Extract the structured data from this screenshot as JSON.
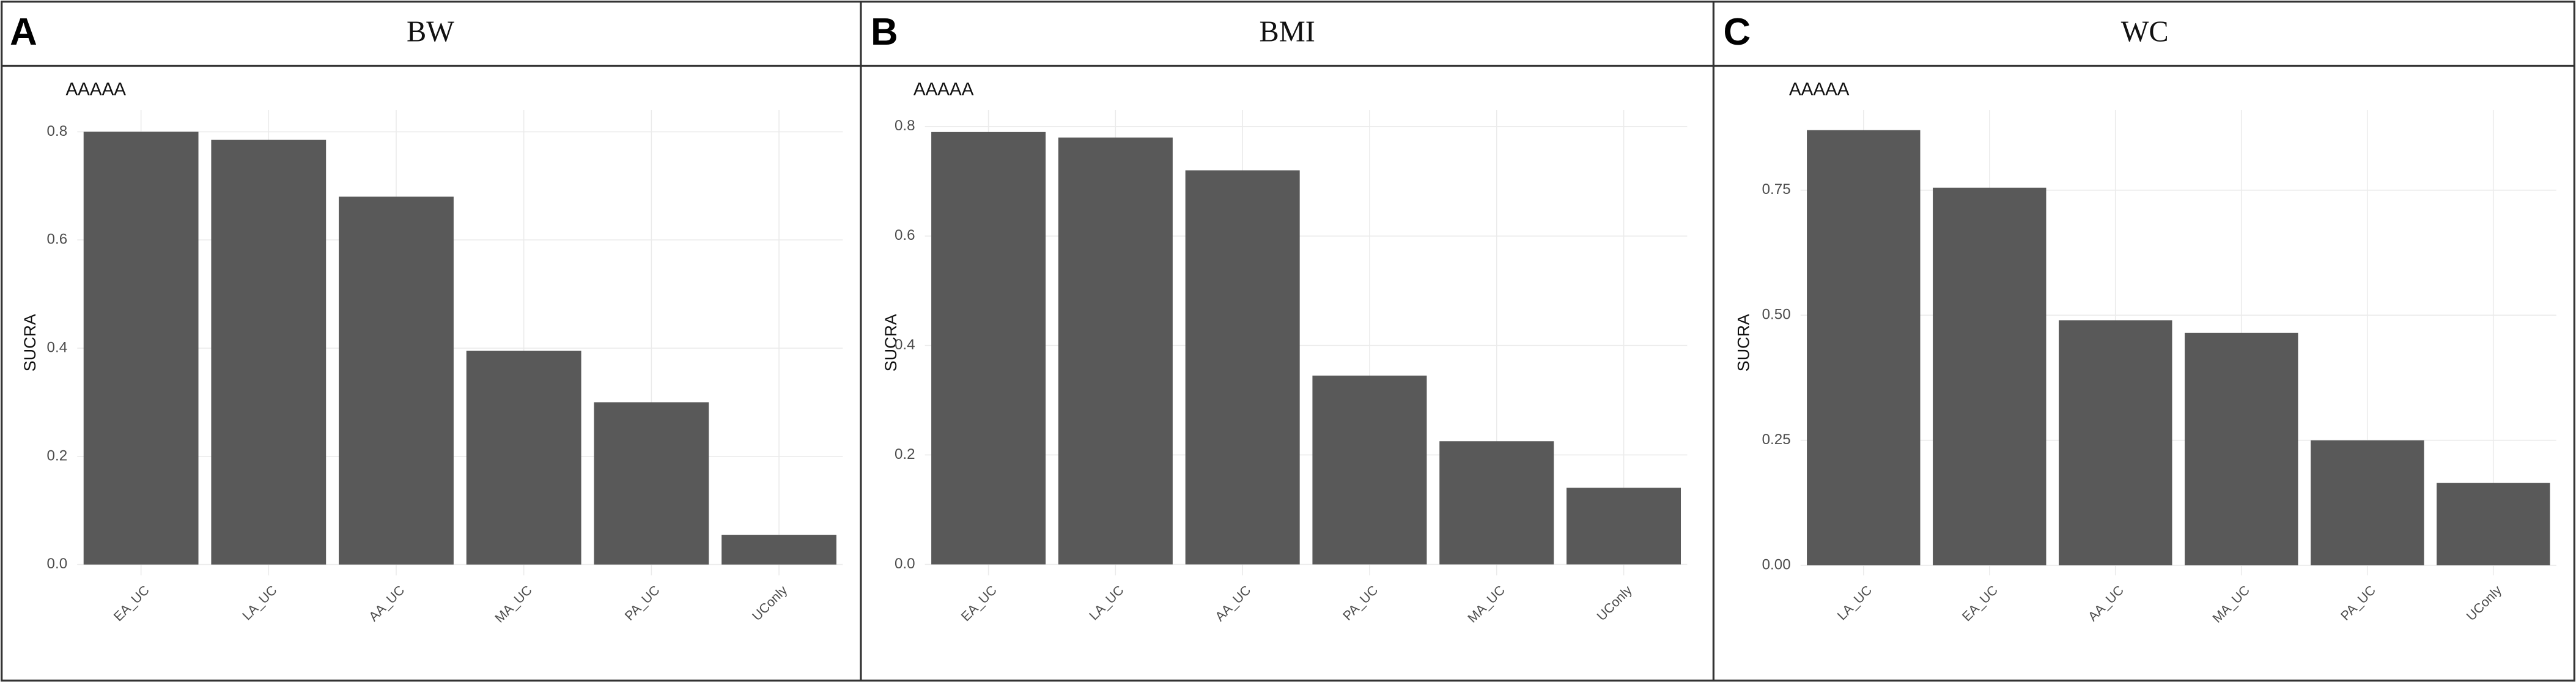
{
  "chart_data": [
    {
      "type": "bar",
      "panel_label": "A",
      "title": "BW",
      "tag": "AAAAA",
      "y_label": "SUCRA",
      "categories": [
        "EA_UC",
        "LA_UC",
        "AA_UC",
        "MA_UC",
        "PA_UC",
        "UConly"
      ],
      "values": [
        0.8,
        0.785,
        0.68,
        0.395,
        0.3,
        0.055
      ],
      "color": "#595959",
      "ylim": [
        -0.02,
        0.84
      ],
      "yticks": [
        {
          "value": 0,
          "label": "0.0"
        },
        0.2,
        0.4,
        0.6,
        0.8
      ],
      "grid": true
    },
    {
      "type": "bar",
      "panel_label": "B",
      "title": "BMI",
      "tag": "AAAAA",
      "y_label": "SUCRA",
      "categories": [
        "EA_UC",
        "LA_UC",
        "AA_UC",
        "PA_UC",
        "MA_UC",
        "UConly"
      ],
      "values": [
        0.79,
        0.78,
        0.72,
        0.345,
        0.225,
        0.14
      ],
      "color": "#595959",
      "ylim": [
        -0.02,
        0.83
      ],
      "yticks": [
        {
          "value": 0,
          "label": "0.0"
        },
        0.2,
        0.4,
        0.6,
        0.8
      ],
      "grid": true
    },
    {
      "type": "bar",
      "panel_label": "C",
      "title": "WC",
      "tag": "AAAAA",
      "y_label": "SUCRA",
      "categories": [
        "LA_UC",
        "EA_UC",
        "AA_UC",
        "MA_UC",
        "PA_UC",
        "UConly"
      ],
      "values": [
        0.87,
        0.755,
        0.49,
        0.465,
        0.25,
        0.165
      ],
      "color": "#595959",
      "ylim": [
        -0.02,
        0.91
      ],
      "yticks": [
        {
          "value": 0,
          "label": "0.00"
        },
        {
          "value": 0.25,
          "label": "0.25"
        },
        {
          "value": 0.5,
          "label": "0.50"
        },
        {
          "value": 0.75,
          "label": "0.75"
        }
      ],
      "grid": true
    }
  ]
}
